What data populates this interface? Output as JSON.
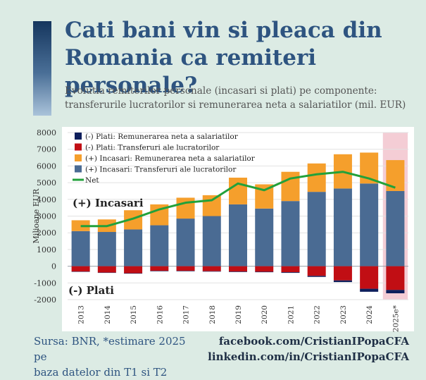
{
  "title_line1": "Cati bani vin si pleaca din",
  "title_line2": "Romania ca remiteri personale?",
  "subtitle_line1": "Evolutia remiterilor personale (incasari si plati) pe componente:",
  "subtitle_line2": "transferurile lucratorilor si remunerarea neta a salariatilor (mil. EUR)",
  "source_line1": "Sursa: BNR, *estimare 2025 pe",
  "source_line2": "baza datelor din T1 si T2",
  "social_facebook": "facebook.com/CristianIPopaCFA",
  "social_linkedin": "linkedin.com/in/CristianIPopaCFA",
  "colors": {
    "transfers_in": "#4a6b93",
    "remuneration_in": "#f59f2c",
    "transfers_out": "#c10e14",
    "remuneration_out": "#0e1f5c",
    "net": "#22a13a",
    "estimate_highlight": "#f4cdd5"
  },
  "chart_data": {
    "type": "bar",
    "stacked": true,
    "ylabel": "Milioane EUR",
    "ylim": [
      -2000,
      8000
    ],
    "yticks": [
      -2000,
      -1000,
      0,
      1000,
      2000,
      3000,
      4000,
      5000,
      6000,
      7000,
      8000
    ],
    "categories": [
      "2013",
      "2014",
      "2015",
      "2016",
      "2017",
      "2018",
      "2019",
      "2020",
      "2021",
      "2022",
      "2023",
      "2024",
      "2025e*"
    ],
    "highlight_category": "2025e*",
    "annotations": [
      "(+) Incasari",
      "(-) Plati"
    ],
    "legend_position": "top-left",
    "series": [
      {
        "name": "(-) Plati: Remunerarea neta a salariatilor",
        "kind": "bar",
        "values": [
          -20,
          -20,
          -25,
          -25,
          -25,
          -25,
          -30,
          -30,
          -40,
          -60,
          -100,
          -180,
          -200
        ]
      },
      {
        "name": "(-) Plati: Transferuri ale lucratorilor",
        "kind": "bar",
        "values": [
          -320,
          -380,
          -420,
          -280,
          -280,
          -300,
          -320,
          -330,
          -360,
          -580,
          -850,
          -1350,
          -1420
        ]
      },
      {
        "name": "(+) Incasari: Remunerarea neta a salariatilor",
        "kind": "bar",
        "values": [
          650,
          750,
          1150,
          1250,
          1250,
          1250,
          1600,
          1450,
          1750,
          1700,
          2050,
          1850,
          1850
        ]
      },
      {
        "name": "(+) Incasari: Transferuri ale lucratorilor",
        "kind": "bar",
        "values": [
          2100,
          2050,
          2200,
          2450,
          2850,
          3000,
          3700,
          3450,
          3900,
          4450,
          4650,
          4950,
          4500
        ]
      },
      {
        "name": "Net",
        "kind": "line",
        "values": [
          2400,
          2400,
          2850,
          3400,
          3800,
          3950,
          4950,
          4550,
          5250,
          5500,
          5650,
          5250,
          4700
        ]
      }
    ]
  }
}
